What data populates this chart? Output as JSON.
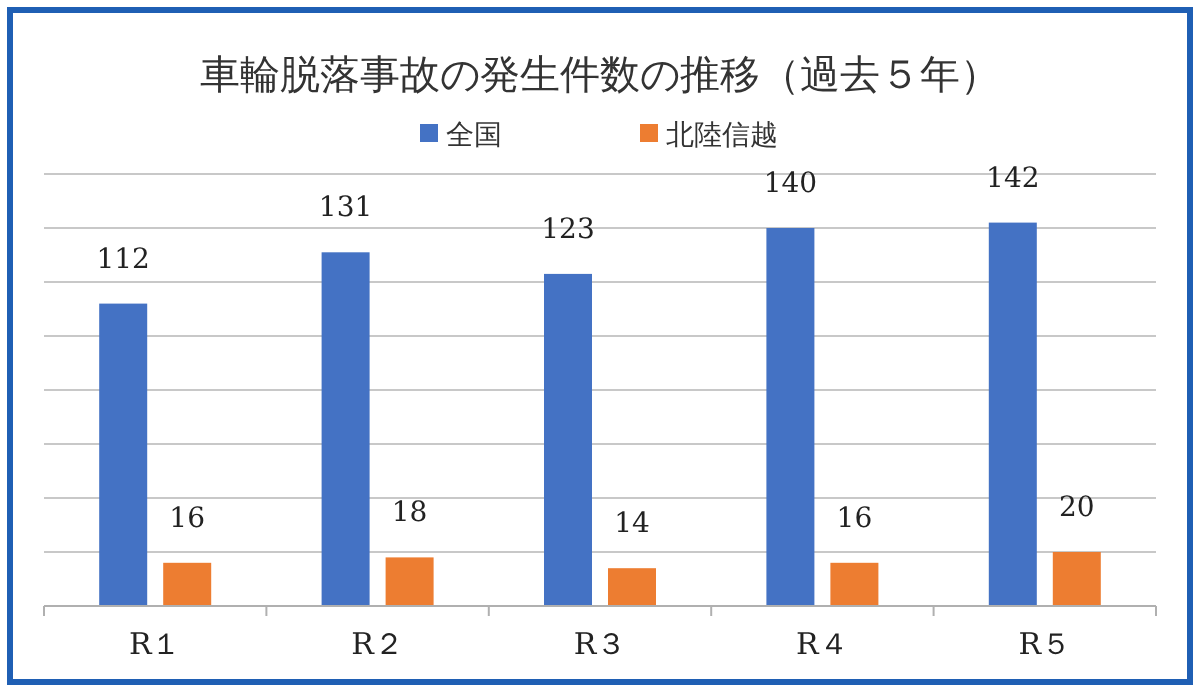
{
  "chart_data": {
    "type": "bar",
    "title": "車輪脱落事故の発生件数の推移（過去５年）",
    "categories": [
      "R１",
      "R２",
      "R３",
      "R４",
      "R５"
    ],
    "series": [
      {
        "name": "全国",
        "color": "#4472c4",
        "values": [
          112,
          131,
          123,
          140,
          142
        ]
      },
      {
        "name": "北陸信越",
        "color": "#ed7d31",
        "values": [
          16,
          18,
          14,
          16,
          20
        ]
      }
    ],
    "ylim": [
      0,
      160
    ],
    "yticks": [
      {
        "value": 0,
        "label": null
      },
      {
        "value": 20,
        "label": null
      },
      {
        "value": 40,
        "label": null
      },
      {
        "value": 60,
        "label": null
      },
      {
        "value": 80,
        "label": null
      },
      {
        "value": 100,
        "label": null
      },
      {
        "value": 120,
        "label": null
      },
      {
        "value": 140,
        "label": null
      },
      {
        "value": 160,
        "label": null
      }
    ],
    "tick_labels": "x",
    "grid": "y",
    "legend": "top",
    "data_labels": true
  }
}
